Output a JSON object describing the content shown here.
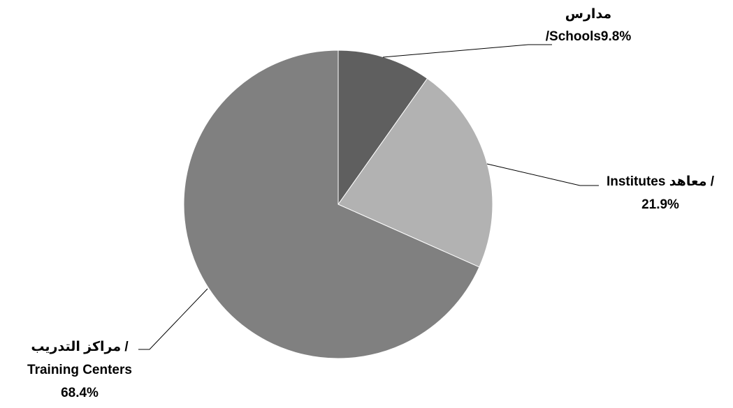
{
  "chart_data": {
    "type": "pie",
    "title": "",
    "slices": [
      {
        "label_lines": [
          "مدارس",
          "/Schools9.8%"
        ],
        "value": 9.8,
        "color": "#5f5f5f"
      },
      {
        "label_lines": [
          "Institutes معاهد /",
          "21.9%"
        ],
        "value": 21.9,
        "color": "#b2b2b2"
      },
      {
        "label_lines": [
          "مراكز التدريب /",
          "Training Centers",
          "68.4%"
        ],
        "value": 68.4,
        "color": "#808080"
      }
    ],
    "start_angle_deg": 0,
    "direction": "clockwise",
    "legend": "none",
    "data_labels": "outside-with-leader-lines"
  }
}
